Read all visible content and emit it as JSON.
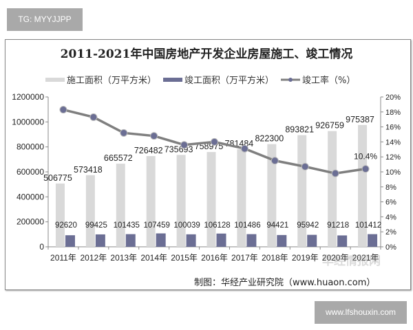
{
  "header_tag": "TG: MYYJJPP",
  "footer_tag": "www.lfshouxin.com",
  "credit": "制图：华经产业研究院（www.huaon.com）",
  "watermark": "华经情报网",
  "colors": {
    "construction": "#d9d9d9",
    "completed": "#6b6e94",
    "rate": "#7f7f7f"
  },
  "chart_data": {
    "type": "bar",
    "title": "2011-2021年中国房地产开发企业房屋施工、竣工情况",
    "categories": [
      "2011年",
      "2012年",
      "2013年",
      "2014年",
      "2015年",
      "2016年",
      "2017年",
      "2018年",
      "2019年",
      "2020年",
      "2021年"
    ],
    "series": [
      {
        "name": "施工面积（万平方米）",
        "type": "bar",
        "axis": "left",
        "values": [
          506775,
          573418,
          665572,
          726482,
          735693,
          758975,
          781484,
          822300,
          893821,
          926759,
          975387
        ]
      },
      {
        "name": "竣工面积（万平方米）",
        "type": "bar",
        "axis": "left",
        "values": [
          92620,
          99425,
          101435,
          107459,
          100039,
          106128,
          101486,
          94421,
          95942,
          91218,
          101412
        ]
      },
      {
        "name": "竣工率（%）",
        "type": "line",
        "axis": "right",
        "values": [
          18.3,
          17.3,
          15.2,
          14.8,
          13.6,
          14.0,
          13.1,
          11.5,
          10.7,
          9.8,
          10.4
        ],
        "labeled_point": {
          "index": 10,
          "label": "10.4%"
        }
      }
    ],
    "left_axis": {
      "ylim": [
        0,
        1200000
      ],
      "ticks": [
        "0",
        "200000",
        "400000",
        "600000",
        "800000",
        "1000000",
        "1200000"
      ]
    },
    "right_axis": {
      "ylim": [
        0,
        20
      ],
      "ticks": [
        "0%",
        "2%",
        "4%",
        "6%",
        "8%",
        "10%",
        "12%",
        "14%",
        "16%",
        "18%",
        "20%"
      ]
    },
    "legend_position": "top",
    "grid": false
  }
}
